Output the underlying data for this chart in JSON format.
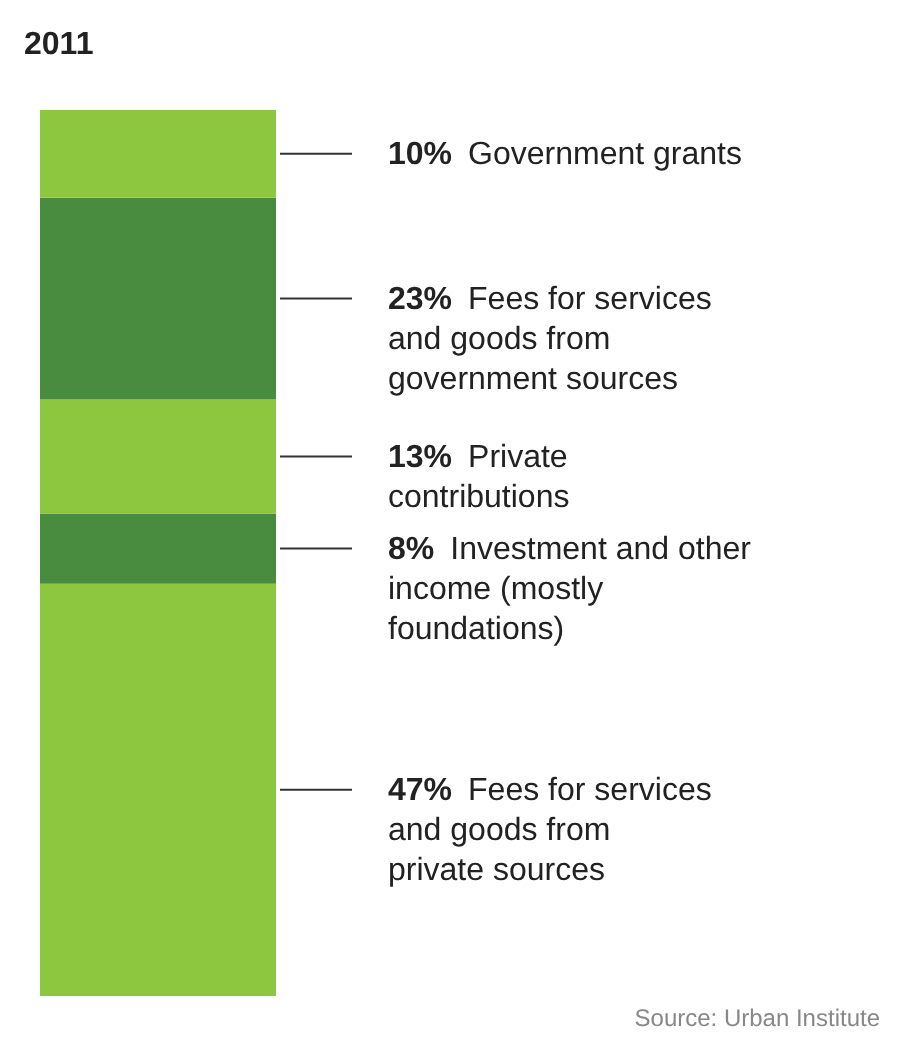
{
  "chart_data": {
    "type": "bar",
    "title": "2011",
    "stacked": true,
    "categories": [
      null
    ],
    "series": [
      {
        "name": "Fees for services and goods from private sources",
        "color": "#8dc63f",
        "values": [
          47
        ],
        "value_labels": [
          "47%"
        ]
      },
      {
        "name": "Investment and other income (mostly foundations)",
        "color": "#4a8c3f",
        "values": [
          8
        ],
        "value_labels": [
          "8%"
        ]
      },
      {
        "name": "Private contributions",
        "color": "#8dc63f",
        "values": [
          13
        ],
        "value_labels": [
          "13%"
        ]
      },
      {
        "name": "Fees for services and goods from government sources",
        "color": "#4a8c3f",
        "values": [
          23
        ],
        "value_labels": [
          "23%"
        ]
      },
      {
        "name": "Government grants",
        "color": "#8dc63f",
        "values": [
          10
        ],
        "value_labels": [
          "10%"
        ]
      }
    ],
    "annotations": [
      "Source: Urban Institute"
    ]
  }
}
